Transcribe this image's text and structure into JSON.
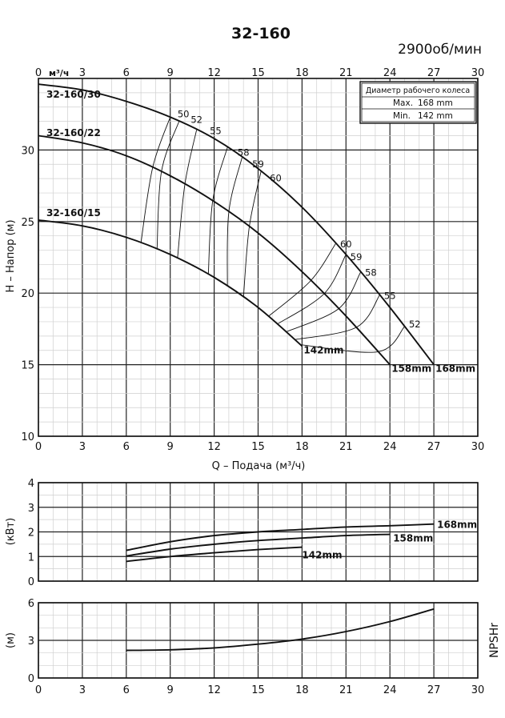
{
  "title": "32-160",
  "speed": "2900об/мин",
  "impeller_box": {
    "header": "Диаметр рабочего колеса",
    "max_label": "Max.",
    "max_value": "168 mm",
    "min_label": "Min.",
    "min_value": "142 mm"
  },
  "chart_data": [
    {
      "type": "line",
      "name": "head",
      "x_unit_label": "м³/ч",
      "xlabel": "Q – Подача (м³/ч)",
      "ylabel": "H – Напор (м)",
      "xlim": [
        0,
        30
      ],
      "ylim": [
        10,
        35
      ],
      "xticks": [
        0,
        3,
        6,
        9,
        12,
        15,
        18,
        21,
        24,
        27,
        30
      ],
      "yticks": [
        10,
        15,
        20,
        25,
        30
      ],
      "grid": true,
      "series": [
        {
          "name": "32-160/30",
          "end_label": "168mm",
          "x": [
            0,
            3,
            6,
            9,
            12,
            15,
            18,
            21,
            24,
            27
          ],
          "y": [
            34.6,
            34.2,
            33.4,
            32.3,
            30.8,
            28.7,
            26.0,
            22.7,
            19.0,
            15.0
          ]
        },
        {
          "name": "32-160/22",
          "end_label": "158mm",
          "x": [
            0,
            3,
            6,
            9,
            12,
            15,
            18,
            21,
            24
          ],
          "y": [
            31.0,
            30.5,
            29.6,
            28.2,
            26.4,
            24.2,
            21.5,
            18.4,
            15.0
          ]
        },
        {
          "name": "32-160/15",
          "end_label": "142mm",
          "x": [
            0,
            3,
            6,
            9,
            12,
            15,
            18
          ],
          "y": [
            25.1,
            24.7,
            23.9,
            22.7,
            21.1,
            19.0,
            16.3
          ]
        }
      ],
      "efficiency_labels": [
        {
          "label": "50",
          "x": 9.5,
          "y": 32.3
        },
        {
          "label": "52",
          "x": 10.4,
          "y": 31.9
        },
        {
          "label": "55",
          "x": 11.7,
          "y": 31.1
        },
        {
          "label": "58",
          "x": 13.6,
          "y": 29.6
        },
        {
          "label": "59",
          "x": 14.6,
          "y": 28.8
        },
        {
          "label": "60",
          "x": 15.8,
          "y": 27.8
        },
        {
          "label": "60",
          "x": 20.6,
          "y": 23.2
        },
        {
          "label": "59",
          "x": 21.3,
          "y": 22.3
        },
        {
          "label": "58",
          "x": 22.3,
          "y": 21.2
        },
        {
          "label": "55",
          "x": 23.6,
          "y": 19.6
        },
        {
          "label": "52",
          "x": 25.3,
          "y": 17.6
        }
      ]
    },
    {
      "type": "line",
      "name": "power",
      "ylabel": "(кВт)",
      "xlim": [
        0,
        30
      ],
      "ylim": [
        0,
        4
      ],
      "xticks": [
        0,
        3,
        6,
        9,
        12,
        15,
        18,
        21,
        24,
        27,
        30
      ],
      "yticks": [
        0,
        1,
        2,
        3,
        4
      ],
      "grid": true,
      "series": [
        {
          "name": "168mm",
          "x": [
            6,
            9,
            12,
            15,
            18,
            21,
            24,
            27
          ],
          "y": [
            1.25,
            1.6,
            1.85,
            2.0,
            2.1,
            2.2,
            2.25,
            2.32
          ]
        },
        {
          "name": "158mm",
          "x": [
            6,
            9,
            12,
            15,
            18,
            21,
            24
          ],
          "y": [
            1.02,
            1.3,
            1.5,
            1.65,
            1.75,
            1.85,
            1.9
          ]
        },
        {
          "name": "142mm",
          "x": [
            6,
            9,
            12,
            15,
            18
          ],
          "y": [
            0.8,
            1.0,
            1.15,
            1.28,
            1.38
          ]
        }
      ]
    },
    {
      "type": "line",
      "name": "npsh",
      "ylabel": "(м)",
      "side_label": "NPSHr",
      "xlim": [
        0,
        30
      ],
      "ylim": [
        0,
        6
      ],
      "xticks": [
        0,
        3,
        6,
        9,
        12,
        15,
        18,
        21,
        24,
        27,
        30
      ],
      "yticks": [
        0,
        3,
        6
      ],
      "grid": true,
      "series": [
        {
          "x": [
            6,
            9,
            12,
            15,
            18,
            21,
            24,
            27
          ],
          "y": [
            2.2,
            2.25,
            2.4,
            2.7,
            3.1,
            3.7,
            4.5,
            5.5
          ]
        }
      ]
    }
  ]
}
